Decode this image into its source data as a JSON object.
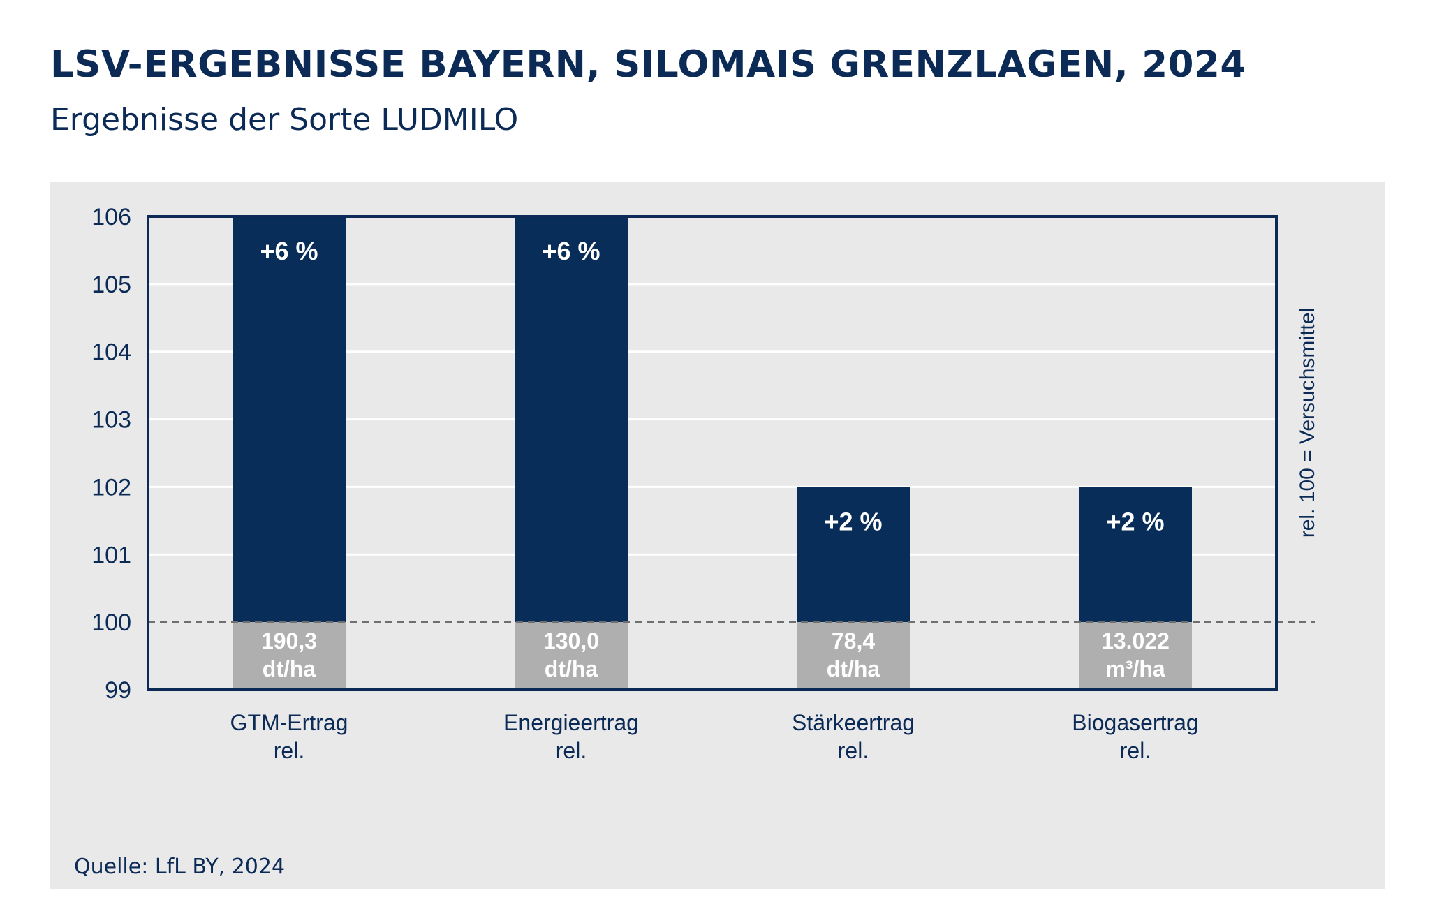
{
  "header": {
    "title": "LSV-ERGEBNISSE BAYERN, SILOMAIS GRENZLAGEN, 2024",
    "subtitle": "Ergebnisse der Sorte LUDMILO"
  },
  "footer": {
    "source": "Quelle: LfL BY, 2024"
  },
  "colors": {
    "bar": "#072d58",
    "base_block": "#afafaf",
    "panel": "#e9e9ea",
    "frame": "#0b2a55",
    "grid": "#ffffff",
    "reference_line": "#6f6f6f"
  },
  "chart_data": {
    "type": "bar",
    "categories": [
      [
        "GTM-Ertrag",
        "rel."
      ],
      [
        "Energieertrag",
        "rel."
      ],
      [
        "Stärkeertrag",
        "rel."
      ],
      [
        "Biogasertrag",
        "rel."
      ]
    ],
    "values": [
      106,
      106,
      102,
      102
    ],
    "bar_labels": [
      "+6 %",
      "+6 %",
      "+2 %",
      "+2 %"
    ],
    "base_labels": [
      [
        "190,3",
        "dt/ha"
      ],
      [
        "130,0",
        "dt/ha"
      ],
      [
        "78,4",
        "dt/ha"
      ],
      [
        "13.022",
        "m³/ha"
      ]
    ],
    "reference_value": 100,
    "ylim": [
      99,
      106
    ],
    "yticks": [
      "99",
      "100",
      "101",
      "102",
      "103",
      "104",
      "105",
      "106"
    ],
    "right_axis_label": "rel. 100 = Versuchsmittel",
    "grid": true
  }
}
